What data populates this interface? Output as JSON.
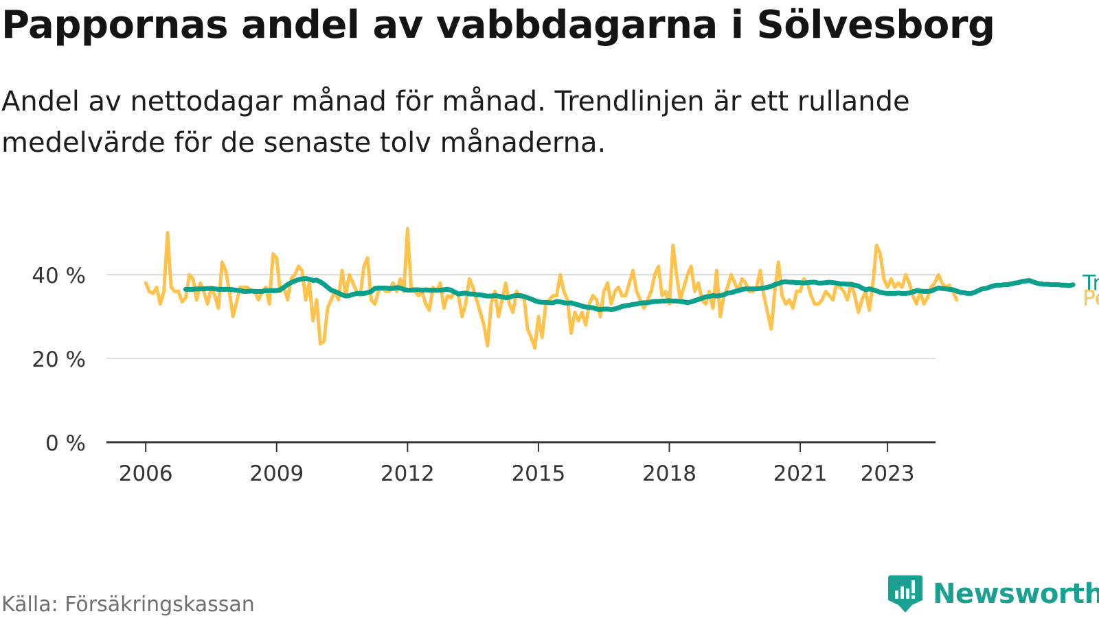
{
  "title": "Pappornas andel av vabbdagarna i Sölvesborg",
  "subtitle": "Andel av nettodagar månad för månad. Trendlinjen är ett rullande medelvärde för de senaste tolv månaderna.",
  "source": "Källa: Försäkringskassan",
  "brand": {
    "name": "Newsworthy",
    "icon": "newsworthy-logo-icon"
  },
  "colors": {
    "monthly": "#ffc34d",
    "trend": "#0aa08c",
    "grid": "#dcdcdc",
    "axis": "#333333",
    "label_trend": "#0aa08c",
    "label_monthly": "#ffc34d"
  },
  "chart_data": {
    "type": "line",
    "title": "Pappornas andel av vabbdagarna i Sölvesborg",
    "xlabel": "",
    "ylabel": "",
    "x_range": [
      2005.1,
      2024.1
    ],
    "ylim": [
      0,
      60
    ],
    "y_ticks": [
      {
        "value": 0,
        "label": "0 %"
      },
      {
        "value": 20,
        "label": "20 %"
      },
      {
        "value": 40,
        "label": "40 %"
      }
    ],
    "x_ticks": [
      {
        "value": 2006,
        "label": "2006"
      },
      {
        "value": 2009,
        "label": "2009"
      },
      {
        "value": 2012,
        "label": "2012"
      },
      {
        "value": 2015,
        "label": "2015"
      },
      {
        "value": 2018,
        "label": "2018"
      },
      {
        "value": 2021,
        "label": "2021"
      },
      {
        "value": 2023,
        "label": "2023"
      }
    ],
    "grid": true,
    "series": [
      {
        "name": "Per månad",
        "start": 2006.0,
        "step": 0.08333,
        "values": [
          38,
          36,
          35.5,
          37,
          33,
          36,
          50,
          37,
          36,
          36,
          33.5,
          34.5,
          40,
          39,
          34,
          38,
          36,
          33,
          37,
          35,
          32,
          43,
          41,
          36,
          30,
          33.5,
          37,
          37,
          37,
          36,
          36,
          34,
          36,
          37,
          33,
          45,
          44,
          36,
          37,
          34,
          39,
          40,
          42,
          41,
          34,
          38,
          29,
          34,
          23.5,
          24,
          32,
          34,
          36,
          34,
          41,
          35,
          40,
          38,
          36,
          35,
          42,
          44,
          34,
          33,
          36,
          37,
          36,
          36,
          38,
          36,
          39,
          36,
          51,
          37,
          36,
          35,
          36,
          33,
          31.5,
          37,
          36,
          38,
          32,
          35,
          34.5,
          36,
          35,
          30,
          33,
          39,
          37,
          34,
          31,
          28,
          23,
          33,
          36,
          30,
          34,
          38,
          33,
          31,
          36,
          34.5,
          35,
          27,
          25,
          22.5,
          30,
          25,
          33,
          34,
          35,
          35,
          40,
          36,
          34,
          26,
          31,
          29,
          31,
          28,
          33,
          35,
          34,
          30,
          36,
          38,
          33,
          36,
          37,
          35,
          35,
          38,
          41,
          36,
          34,
          32,
          34,
          36,
          40,
          42,
          35,
          36,
          33,
          47,
          40,
          34,
          37,
          40,
          42,
          36,
          38,
          34,
          33,
          36,
          32,
          41,
          30,
          35,
          37,
          40,
          38,
          36,
          39,
          38,
          36,
          36,
          37,
          41,
          35,
          31,
          27,
          36,
          43,
          35,
          33,
          34,
          32,
          36,
          36,
          39,
          38,
          35,
          33,
          33,
          34,
          36,
          35,
          34,
          38,
          37,
          36,
          34,
          38,
          35,
          31,
          34,
          36,
          31.5,
          38,
          47,
          45,
          39,
          37,
          39,
          37,
          38,
          37,
          40,
          38,
          35,
          33,
          36,
          33,
          34.5,
          37,
          38,
          40,
          38,
          37,
          37.5,
          36,
          34
        ],
        "color": "#ffc34d"
      },
      {
        "name": "Trend",
        "start": 2006.917,
        "step": 0.08333,
        "values": [
          36.5,
          36.5,
          36.5,
          36.6,
          36.6,
          36.6,
          36.7,
          36.7,
          36.6,
          36.5,
          36.5,
          36.5,
          36.5,
          36.4,
          36.3,
          36.2,
          36,
          36,
          36.1,
          36,
          36,
          36,
          36.2,
          36.2,
          36.2,
          36.2,
          36.4,
          37,
          37.6,
          38.1,
          38.5,
          38.8,
          39,
          39.1,
          38.9,
          38.6,
          38.7,
          38.3,
          37.7,
          37,
          36.3,
          36,
          35.6,
          35.2,
          34.9,
          35,
          35.3,
          35.5,
          35.5,
          35.5,
          35.7,
          36,
          36.7,
          36.8,
          36.8,
          36.8,
          36.7,
          36.7,
          36.9,
          36.8,
          36.5,
          36.3,
          36.3,
          36.4,
          36.4,
          36.3,
          36.4,
          36.3,
          36.3,
          36.3,
          36.3,
          36.4,
          36.5,
          36.3,
          35.8,
          35.4,
          35.5,
          35.6,
          35.4,
          35.4,
          35.2,
          35.2,
          35,
          34.9,
          34.9,
          35,
          34.9,
          34.7,
          34.5,
          34.6,
          34.9,
          35,
          35,
          34.8,
          34.5,
          34.2,
          33.8,
          33.5,
          33.4,
          33.4,
          33.3,
          33.3,
          33.6,
          33.5,
          33.3,
          33.2,
          33.3,
          33,
          32.8,
          32.5,
          32.3,
          32.2,
          32.1,
          31.8,
          31.7,
          31.8,
          31.8,
          31.7,
          31.8,
          32.1,
          32.4,
          32.6,
          32.7,
          32.9,
          33,
          33.2,
          33.3,
          33.3,
          33.5,
          33.6,
          33.6,
          33.7,
          33.7,
          33.8,
          33.7,
          33.7,
          33.6,
          33.5,
          33.3,
          33.5,
          33.8,
          34.1,
          34.4,
          34.7,
          34.8,
          35,
          34.9,
          35,
          35.2,
          35.6,
          35.7,
          36,
          36.2,
          36.5,
          36.6,
          36.6,
          36.6,
          36.6,
          36.7,
          36.8,
          37,
          37.2,
          37.6,
          37.9,
          38.2,
          38.3,
          38.2,
          38.2,
          38.1,
          38.1,
          38,
          38.1,
          38.2,
          38.2,
          38,
          38,
          38.1,
          38.2,
          38.1,
          38,
          37.8,
          37.8,
          37.7,
          37.7,
          37.5,
          37.3,
          36.8,
          36.4,
          36.6,
          36.4,
          36.1,
          35.8,
          35.6,
          35.5,
          35.5,
          35.5,
          35.6,
          35.5,
          35.5,
          35.6,
          35.9,
          36.2,
          36.1,
          36,
          36,
          36.1,
          36.5,
          36.8,
          36.7,
          36.6,
          36.5,
          36.4,
          36.1,
          35.8,
          35.7,
          35.5,
          35.5,
          35.8,
          36.2,
          36.6,
          36.7,
          37,
          37.3,
          37.5,
          37.5,
          37.6,
          37.6,
          37.8,
          38,
          38.1,
          38.4,
          38.5,
          38.6,
          38.3,
          38,
          37.8,
          37.7,
          37.7,
          37.6,
          37.6,
          37.6,
          37.5,
          37.5,
          37.4,
          37.6
        ],
        "color": "#0aa08c"
      }
    ],
    "end_labels": {
      "trend": "Trend",
      "monthly": "Per månad"
    }
  }
}
